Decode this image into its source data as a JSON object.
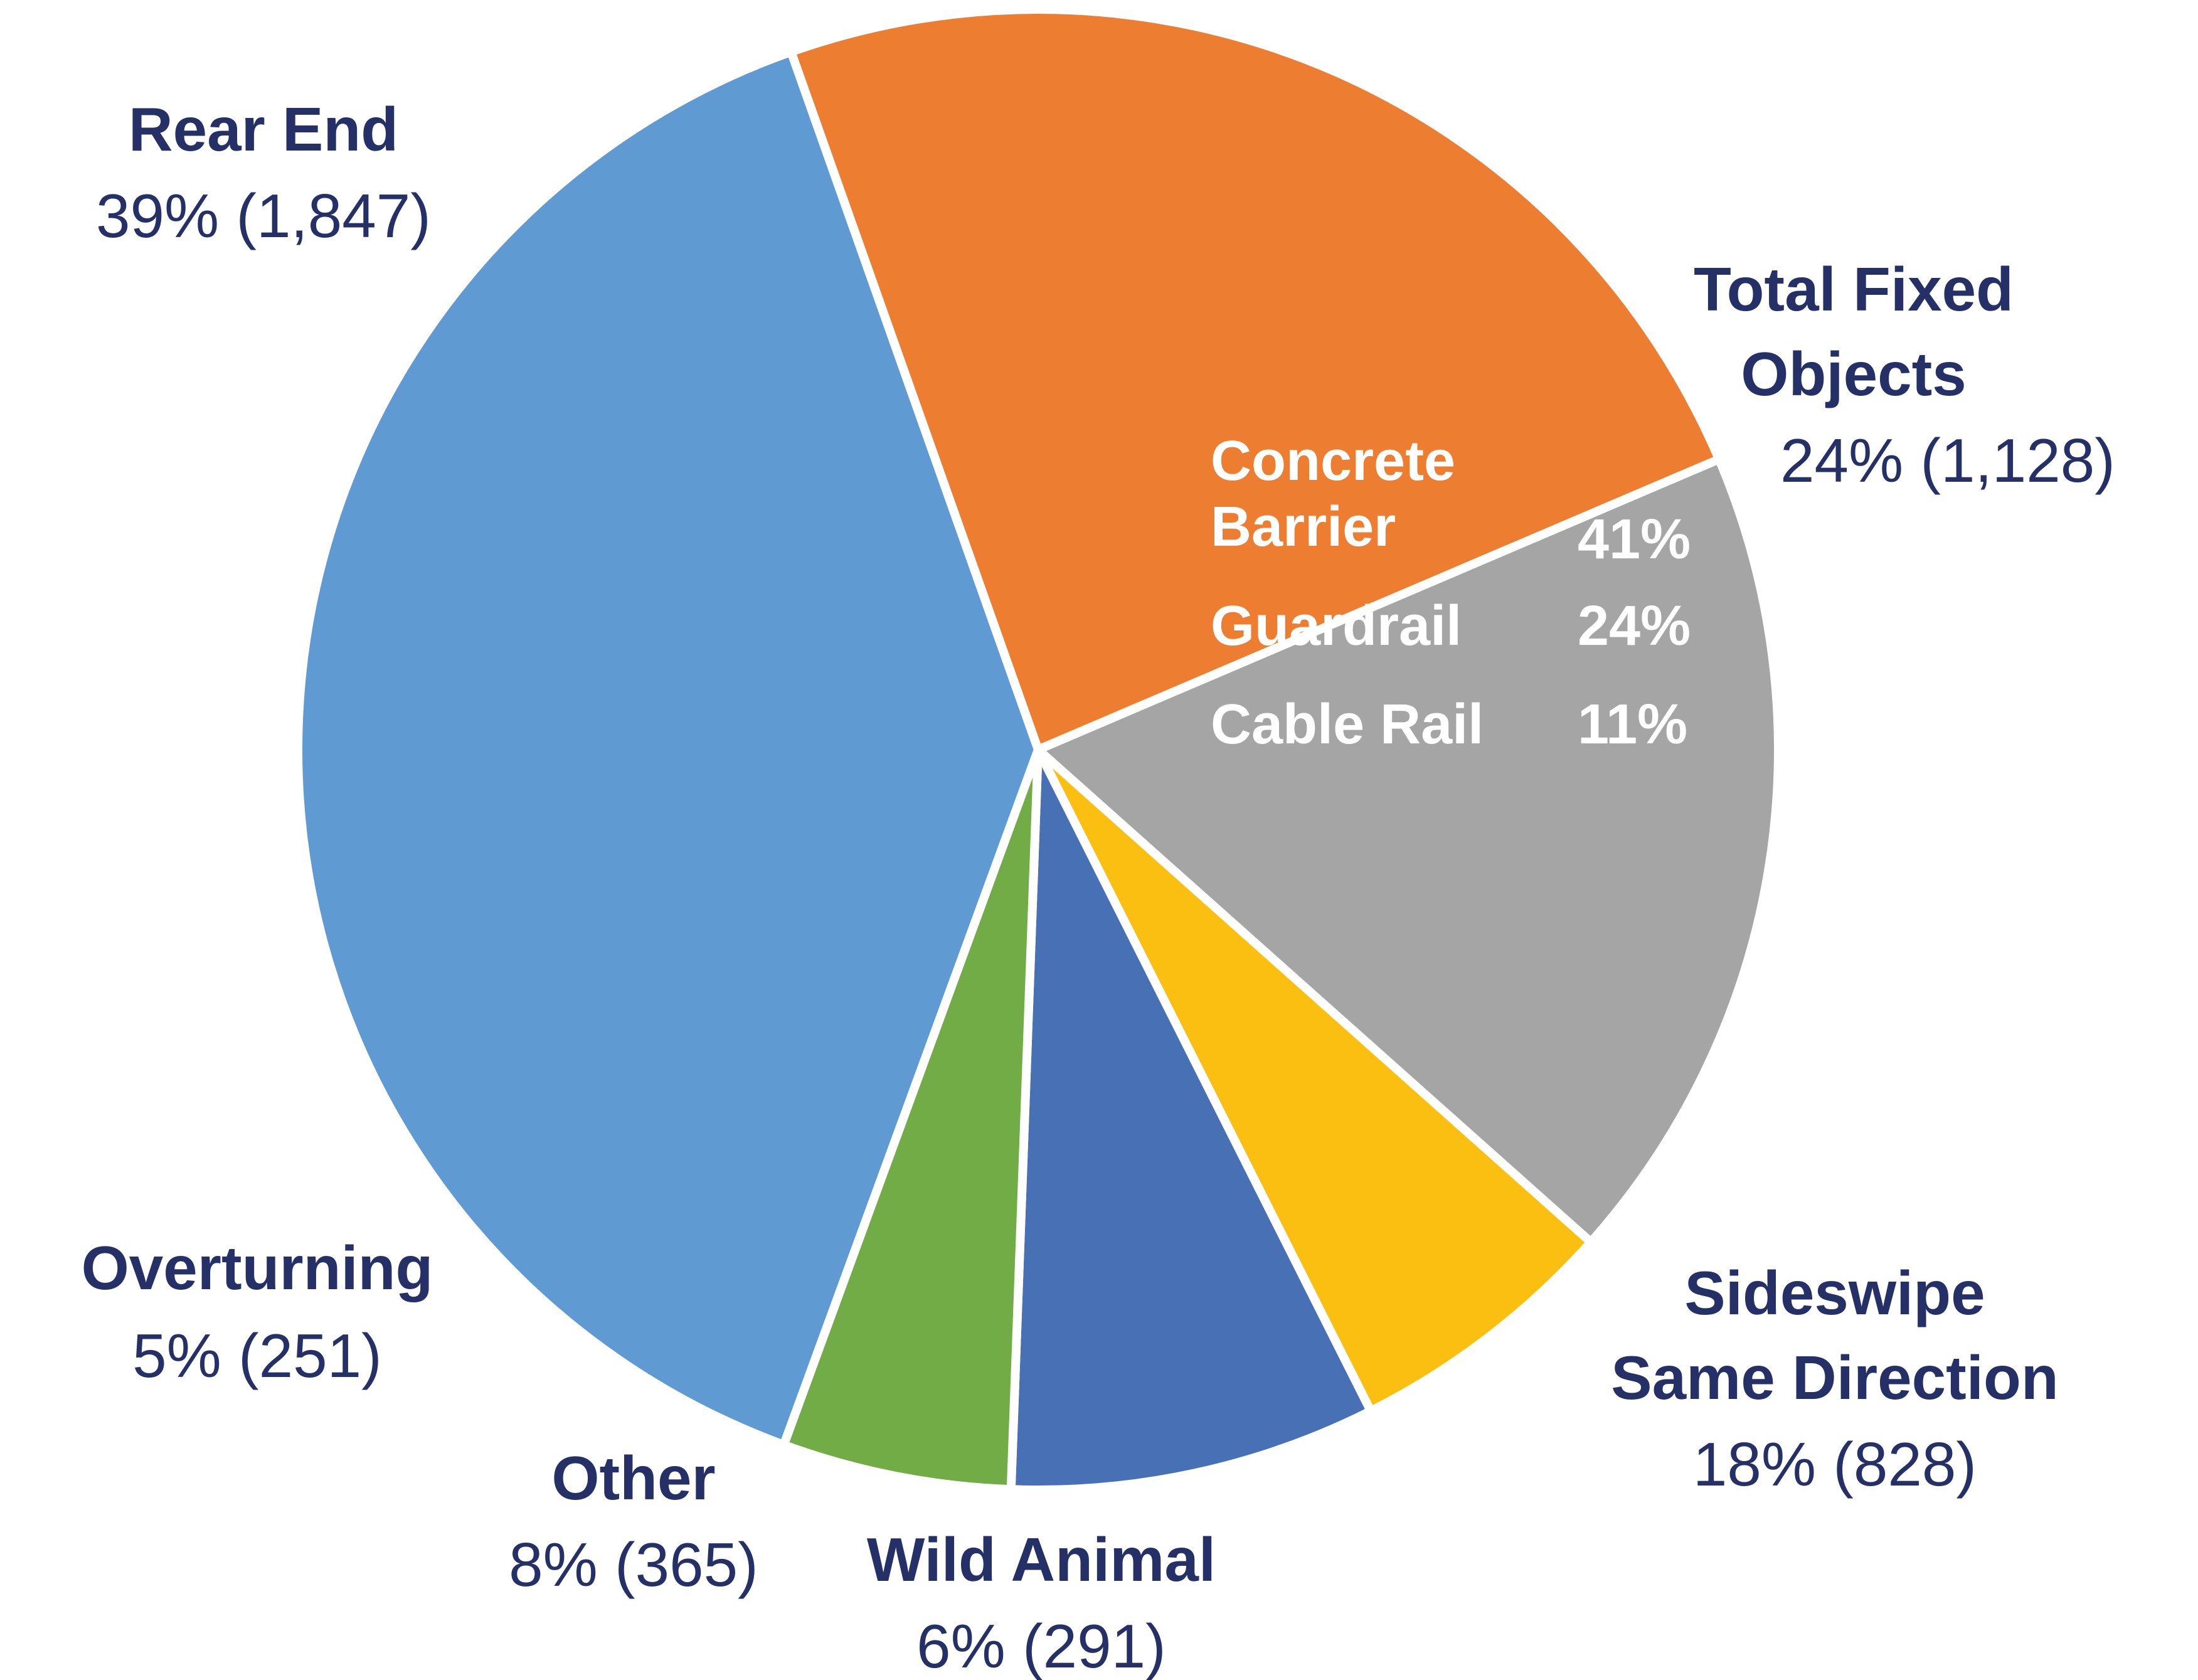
{
  "chart_data": {
    "type": "pie",
    "title": "",
    "start_angle_deg": -19.5,
    "direction": "clockwise",
    "slices": [
      {
        "name_lines": [
          "Total Fixed",
          "Objects"
        ],
        "value_label": "24% (1,128)",
        "percent": 24,
        "count": 1128,
        "color": "#ED7D31"
      },
      {
        "name_lines": [
          "Sideswipe",
          "Same Direction"
        ],
        "value_label": "18% (828)",
        "percent": 18,
        "count": 828,
        "color": "#A5A5A5"
      },
      {
        "name_lines": [
          "Wild Animal"
        ],
        "value_label": "6% (291)",
        "percent": 6,
        "count": 291,
        "color": "#FBBF12"
      },
      {
        "name_lines": [
          "Other"
        ],
        "value_label": "8% (365)",
        "percent": 8,
        "count": 365,
        "color": "#4870B5"
      },
      {
        "name_lines": [
          "Overturning"
        ],
        "value_label": "5% (251)",
        "percent": 5,
        "count": 251,
        "color": "#72AC47"
      },
      {
        "name_lines": [
          "Rear End"
        ],
        "value_label": "39% (1,847)",
        "percent": 39,
        "count": 1847,
        "color": "#5F9AD2"
      }
    ],
    "fixed_object_breakdown": [
      {
        "label_lines": [
          "Concrete",
          "Barrier"
        ],
        "value": "41%"
      },
      {
        "label_lines": [
          "Guardrail"
        ],
        "value": "24%"
      },
      {
        "label_lines": [
          "Cable Rail"
        ],
        "value": "11%"
      }
    ]
  }
}
